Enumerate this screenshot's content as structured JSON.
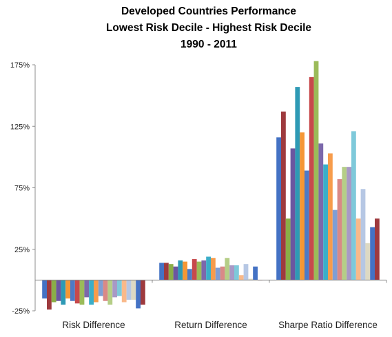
{
  "chart_data": {
    "type": "bar",
    "title": [
      "Developed Countries Performance",
      "Lowest Risk Decile - Highest Risk Decile",
      "1990 - 2011"
    ],
    "xlabel": "",
    "ylabel": "",
    "ylim": [
      -25,
      175
    ],
    "yticks": [
      {
        "value": -25,
        "label": "-25%"
      },
      {
        "value": 25,
        "label": "25%"
      },
      {
        "value": 75,
        "label": "75%"
      },
      {
        "value": 125,
        "label": "125%"
      },
      {
        "value": 175,
        "label": "175%"
      }
    ],
    "grid": false,
    "legend": "none",
    "categories": [
      "Risk Difference",
      "Return Difference",
      "Sharpe Ratio Difference"
    ],
    "colors": [
      "#4472C4",
      "#9E3A3E",
      "#8AAE47",
      "#6B56A0",
      "#2E9AB5",
      "#F59735",
      "#4D7AC7",
      "#C7494C",
      "#9BBB59",
      "#7C68AB",
      "#3BAEC8",
      "#F79C4C",
      "#7F9ED4",
      "#D98987",
      "#B5CE87",
      "#A899C6",
      "#7EC9DA",
      "#F9B98A",
      "#B6C7E4",
      "#DDD9C3"
    ],
    "series": [
      {
        "values": [
          -15,
          14,
          116
        ]
      },
      {
        "values": [
          -24,
          14,
          137
        ]
      },
      {
        "values": [
          -18,
          13,
          50
        ]
      },
      {
        "values": [
          -17,
          11,
          107
        ]
      },
      {
        "values": [
          -20,
          16,
          157
        ]
      },
      {
        "values": [
          -15,
          15,
          120
        ]
      },
      {
        "values": [
          -17,
          9,
          89
        ]
      },
      {
        "values": [
          -19,
          17,
          165
        ]
      },
      {
        "values": [
          -20,
          15,
          178
        ]
      },
      {
        "values": [
          -14,
          16,
          111
        ]
      },
      {
        "values": [
          -20,
          19,
          94
        ]
      },
      {
        "values": [
          -18,
          18,
          103
        ]
      },
      {
        "values": [
          -13,
          10,
          57
        ]
      },
      {
        "values": [
          -17,
          11,
          82
        ]
      },
      {
        "values": [
          -20,
          18,
          92
        ]
      },
      {
        "values": [
          -14,
          12,
          92
        ]
      },
      {
        "values": [
          -13,
          12,
          121
        ]
      },
      {
        "values": [
          -18,
          4,
          50
        ]
      },
      {
        "values": [
          -16,
          13,
          74
        ]
      },
      {
        "values": [
          -16,
          1,
          30
        ]
      },
      {
        "values": [
          -23,
          11,
          43
        ]
      },
      {
        "values": [
          -20,
          0,
          50
        ]
      }
    ]
  }
}
